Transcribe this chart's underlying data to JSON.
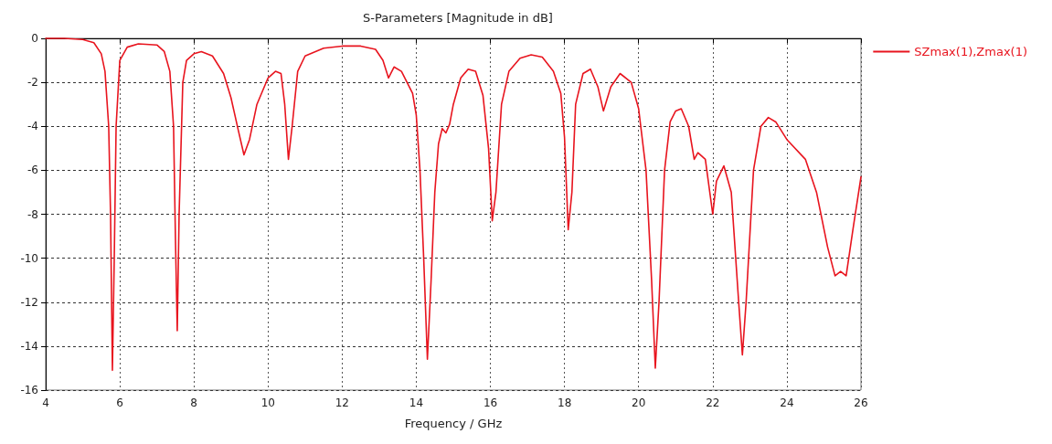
{
  "chart_data": {
    "type": "line",
    "title": "S-Parameters [Magnitude in dB]",
    "xlabel": "Frequency / GHz",
    "xlim": [
      4,
      26
    ],
    "xticks": [
      4,
      6,
      8,
      10,
      12,
      14,
      16,
      18,
      20,
      22,
      24,
      26
    ],
    "ylim": [
      -16,
      0
    ],
    "yticks": [
      -16,
      -14,
      -12,
      -10,
      -8,
      -6,
      -4,
      -2,
      0
    ],
    "grid": true,
    "legend": "top right",
    "marker": "none",
    "line_style": "solid",
    "series": [
      {
        "name": "SZmax(1),Zmax(1)",
        "color": "#e8141e",
        "x": [
          4.0,
          4.5,
          5.0,
          5.3,
          5.5,
          5.6,
          5.7,
          5.75,
          5.8,
          5.85,
          5.9,
          6.0,
          6.2,
          6.5,
          7.0,
          7.2,
          7.35,
          7.45,
          7.5,
          7.55,
          7.6,
          7.7,
          7.8,
          8.0,
          8.2,
          8.5,
          8.8,
          9.0,
          9.2,
          9.35,
          9.5,
          9.7,
          10.0,
          10.2,
          10.35,
          10.45,
          10.55,
          10.65,
          10.8,
          11.0,
          11.5,
          12.0,
          12.5,
          12.9,
          13.1,
          13.25,
          13.4,
          13.6,
          13.9,
          14.0,
          14.1,
          14.2,
          14.3,
          14.4,
          14.5,
          14.6,
          14.7,
          14.8,
          14.9,
          15.0,
          15.2,
          15.4,
          15.6,
          15.8,
          15.95,
          16.05,
          16.15,
          16.3,
          16.5,
          16.8,
          17.1,
          17.4,
          17.7,
          17.9,
          18.0,
          18.1,
          18.2,
          18.3,
          18.5,
          18.7,
          18.9,
          19.05,
          19.25,
          19.5,
          19.8,
          20.0,
          20.2,
          20.35,
          20.45,
          20.55,
          20.7,
          20.85,
          21.0,
          21.15,
          21.35,
          21.5,
          21.6,
          21.8,
          22.0,
          22.1,
          22.3,
          22.5,
          22.7,
          22.8,
          22.9,
          23.1,
          23.3,
          23.5,
          23.7,
          24.0,
          24.5,
          24.8,
          25.1,
          25.3,
          25.45,
          25.6,
          25.8,
          26.0
        ],
        "values": [
          0,
          0,
          -0.05,
          -0.2,
          -0.7,
          -1.5,
          -4,
          -8,
          -15.1,
          -10,
          -4,
          -1.0,
          -0.4,
          -0.25,
          -0.3,
          -0.6,
          -1.5,
          -4,
          -9,
          -13.3,
          -8,
          -2,
          -1.0,
          -0.7,
          -0.6,
          -0.8,
          -1.6,
          -2.7,
          -4.2,
          -5.3,
          -4.6,
          -3,
          -1.8,
          -1.5,
          -1.6,
          -3,
          -5.5,
          -4,
          -1.5,
          -0.8,
          -0.45,
          -0.35,
          -0.35,
          -0.5,
          -1.0,
          -1.8,
          -1.3,
          -1.5,
          -2.5,
          -3.5,
          -6,
          -10,
          -14.6,
          -11,
          -7,
          -4.8,
          -4.1,
          -4.3,
          -3.9,
          -3,
          -1.8,
          -1.4,
          -1.5,
          -2.6,
          -5,
          -8.3,
          -7,
          -3,
          -1.5,
          -0.9,
          -0.75,
          -0.85,
          -1.5,
          -2.5,
          -4.5,
          -8.7,
          -7,
          -3,
          -1.6,
          -1.4,
          -2.2,
          -3.3,
          -2.2,
          -1.6,
          -2,
          -3.2,
          -6,
          -11,
          -15,
          -12,
          -6,
          -3.8,
          -3.3,
          -3.2,
          -4,
          -5.5,
          -5.2,
          -5.5,
          -8.0,
          -6.5,
          -5.8,
          -7,
          -12,
          -14.4,
          -12,
          -6,
          -4,
          -3.6,
          -3.8,
          -4.6,
          -5.5,
          -7,
          -9.5,
          -10.8,
          -10.6,
          -10.8,
          -8.5,
          -6.3
        ]
      }
    ]
  }
}
